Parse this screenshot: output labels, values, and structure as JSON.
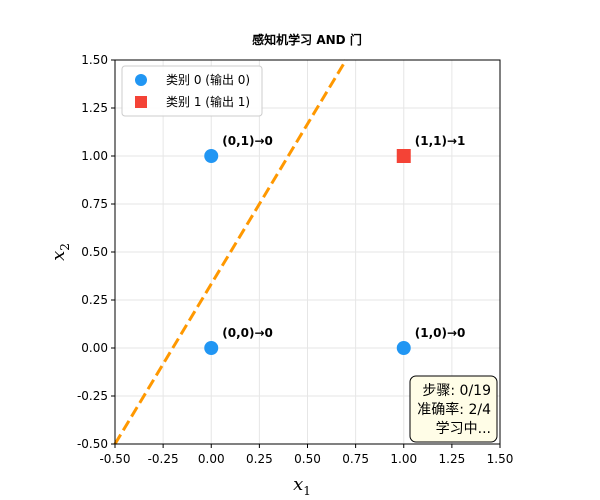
{
  "chart_data": {
    "type": "scatter",
    "title": "感知机学习 AND 门",
    "xlabel": "x",
    "xlabel_sub": "1",
    "ylabel": "x",
    "ylabel_sub": "2",
    "xlim": [
      -0.5,
      1.5
    ],
    "ylim": [
      -0.5,
      1.5
    ],
    "xticks": [
      -0.5,
      -0.25,
      0.0,
      0.25,
      0.5,
      0.75,
      1.0,
      1.25,
      1.5
    ],
    "xtick_labels": [
      "-0.50",
      "-0.25",
      "0.00",
      "0.25",
      "0.50",
      "0.75",
      "1.00",
      "1.25",
      "1.50"
    ],
    "yticks": [
      -0.5,
      -0.25,
      0.0,
      0.25,
      0.5,
      0.75,
      1.0,
      1.25,
      1.5
    ],
    "ytick_labels": [
      "-0.50",
      "-0.25",
      "0.00",
      "0.25",
      "0.50",
      "0.75",
      "1.00",
      "1.25",
      "1.50"
    ],
    "grid": true,
    "legend_position": "top-left",
    "series": [
      {
        "name": "类别 0 (输出 0)",
        "marker": "circle",
        "color": "#2196F3",
        "points": [
          {
            "x": 0,
            "y": 0,
            "label": "(0,0)→0"
          },
          {
            "x": 0,
            "y": 1,
            "label": "(0,1)→0"
          },
          {
            "x": 1,
            "y": 0,
            "label": "(1,0)→0"
          }
        ]
      },
      {
        "name": "类别 1 (输出 1)",
        "marker": "square",
        "color": "#F44336",
        "points": [
          {
            "x": 1,
            "y": 1,
            "label": "(1,1)→1"
          }
        ]
      }
    ],
    "decision_boundary": {
      "color": "#FF9800",
      "style": "dashed",
      "from": {
        "x": -0.5,
        "y": -0.5
      },
      "to": {
        "x": 0.7,
        "y": 1.5
      }
    }
  },
  "status": {
    "line1": "步骤: 0/19",
    "line2": "准确率: 2/4",
    "line3": "学习中..."
  }
}
